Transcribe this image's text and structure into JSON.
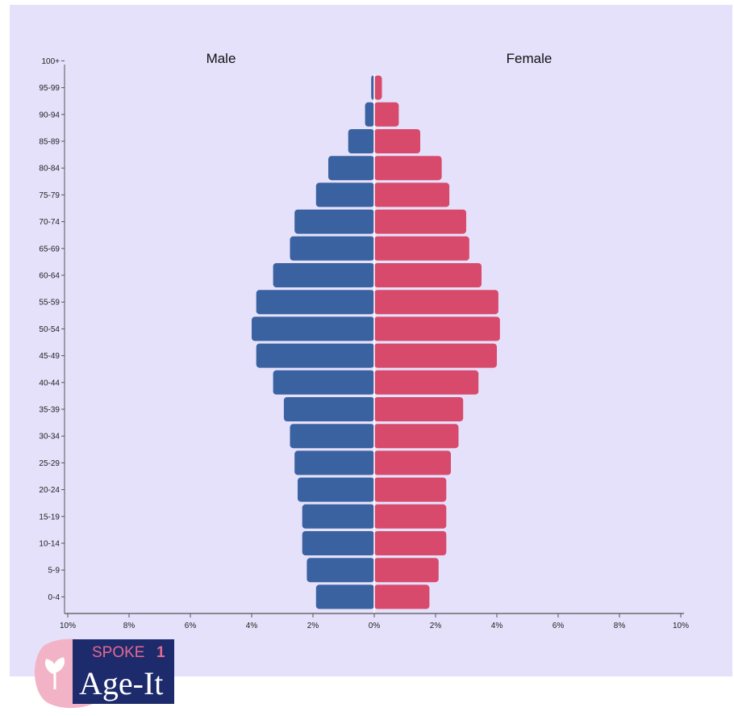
{
  "chart_data": {
    "type": "bar",
    "subtype": "population-pyramid",
    "categories": [
      "0-4",
      "5-9",
      "10-14",
      "15-19",
      "20-24",
      "25-29",
      "30-34",
      "35-39",
      "40-44",
      "45-49",
      "50-54",
      "55-59",
      "60-64",
      "65-69",
      "70-74",
      "75-79",
      "80-84",
      "85-89",
      "90-94",
      "95-99",
      "100+"
    ],
    "series": [
      {
        "name": "Male",
        "color": "#3a61a0",
        "values": [
          1.9,
          2.2,
          2.35,
          2.35,
          2.5,
          2.6,
          2.75,
          2.95,
          3.3,
          3.85,
          4.0,
          3.85,
          3.3,
          2.75,
          2.6,
          1.9,
          1.5,
          0.85,
          0.3,
          0.1,
          0.0
        ]
      },
      {
        "name": "Female",
        "color": "#d84a6b",
        "values": [
          1.8,
          2.1,
          2.35,
          2.35,
          2.35,
          2.5,
          2.75,
          2.9,
          3.4,
          4.0,
          4.1,
          4.05,
          3.5,
          3.1,
          3.0,
          2.45,
          2.2,
          1.5,
          0.8,
          0.25,
          0.0
        ]
      }
    ],
    "x_ticks": [
      "10%",
      "8%",
      "6%",
      "4%",
      "2%",
      "0%",
      "2%",
      "4%",
      "6%",
      "8%",
      "10%"
    ],
    "xlim": [
      -10,
      10
    ],
    "xlabel": "",
    "ylabel": "",
    "grid": false
  },
  "logo": {
    "spoke_text": "SPOKE",
    "spoke_number": "1",
    "brand_text": "Age-It",
    "colors": {
      "pink": "#f2b3c6",
      "pink_dark": "#e46a90",
      "navy": "#1d2a6b"
    }
  }
}
